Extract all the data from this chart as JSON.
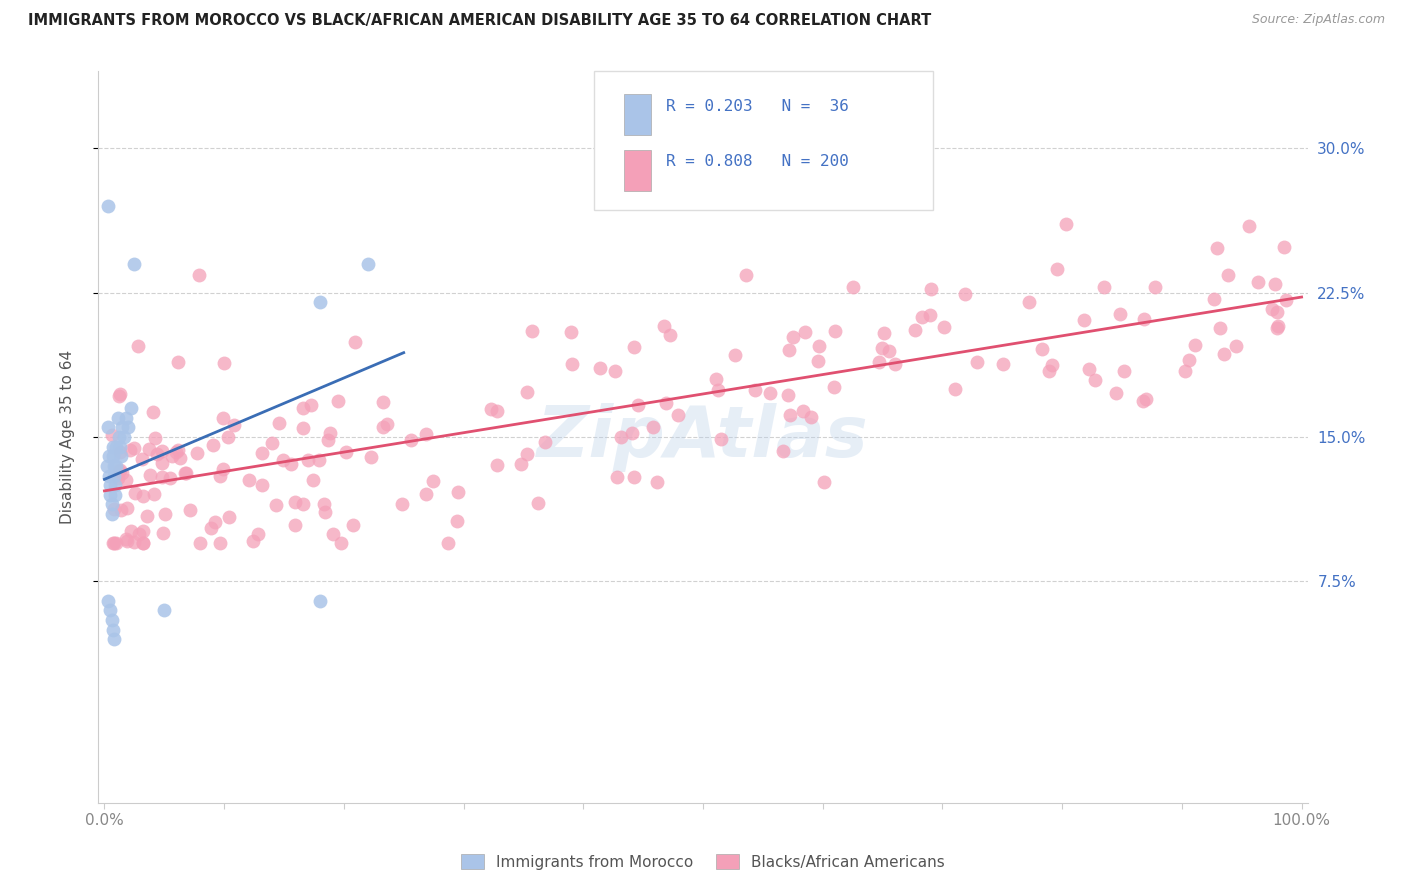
{
  "title": "IMMIGRANTS FROM MOROCCO VS BLACK/AFRICAN AMERICAN DISABILITY AGE 35 TO 64 CORRELATION CHART",
  "source": "Source: ZipAtlas.com",
  "ylabel": "Disability Age 35 to 64",
  "y_tick_values": [
    0.075,
    0.15,
    0.225,
    0.3
  ],
  "y_tick_labels": [
    "7.5%",
    "15.0%",
    "22.5%",
    "30.0%"
  ],
  "r_morocco": 0.203,
  "n_morocco": 36,
  "r_black": 0.808,
  "n_black": 200,
  "morocco_color": "#aac4e8",
  "black_color": "#f4a0b8",
  "morocco_line_color": "#3a6db5",
  "black_line_color": "#e05070",
  "legend_text_color": "#4472c4",
  "grid_color": "#cccccc",
  "tick_color": "#888888"
}
